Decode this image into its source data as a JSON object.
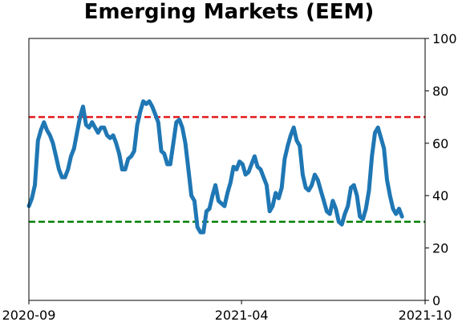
{
  "chart_data": {
    "type": "line",
    "title": "Emerging Markets (EEM)",
    "xlabel": "",
    "ylabel": "",
    "ylim": [
      0,
      100
    ],
    "xlim": [
      "2020-09",
      "2021-10"
    ],
    "x_tick_labels": [
      "2020-09",
      "2021-04",
      "2021-10"
    ],
    "y_tick_labels": [
      "0",
      "20",
      "40",
      "60",
      "80",
      "100"
    ],
    "y_axis_side": "right",
    "grid": false,
    "legend": "none",
    "colors": {
      "series": "#1f77b4",
      "upper_line": "#e31a1c",
      "lower_line": "#008000"
    },
    "reference_lines": [
      {
        "y": 70,
        "style": "dashed",
        "color": "#e31a1c"
      },
      {
        "y": 30,
        "style": "dashed",
        "color": "#008000"
      }
    ],
    "series": [
      {
        "points": [
          [
            "2020-09-01",
            36
          ],
          [
            "2020-09-04",
            39
          ],
          [
            "2020-09-07",
            44
          ],
          [
            "2020-09-10",
            61
          ],
          [
            "2020-09-13",
            65
          ],
          [
            "2020-09-16",
            68
          ],
          [
            "2020-09-19",
            65
          ],
          [
            "2020-09-22",
            63
          ],
          [
            "2020-09-25",
            60
          ],
          [
            "2020-09-28",
            55
          ],
          [
            "2020-10-01",
            50
          ],
          [
            "2020-10-04",
            47
          ],
          [
            "2020-10-07",
            47
          ],
          [
            "2020-10-10",
            50
          ],
          [
            "2020-10-13",
            55
          ],
          [
            "2020-10-16",
            58
          ],
          [
            "2020-10-19",
            64
          ],
          [
            "2020-10-22",
            70
          ],
          [
            "2020-10-25",
            74
          ],
          [
            "2020-10-28",
            67
          ],
          [
            "2020-10-31",
            66
          ],
          [
            "2020-11-03",
            68
          ],
          [
            "2020-11-06",
            66
          ],
          [
            "2020-11-09",
            64
          ],
          [
            "2020-11-12",
            66
          ],
          [
            "2020-11-15",
            66
          ],
          [
            "2020-11-18",
            63
          ],
          [
            "2020-11-21",
            62
          ],
          [
            "2020-11-24",
            63
          ],
          [
            "2020-11-27",
            60
          ],
          [
            "2020-11-30",
            56
          ],
          [
            "2020-12-03",
            50
          ],
          [
            "2020-12-06",
            50
          ],
          [
            "2020-12-09",
            54
          ],
          [
            "2020-12-12",
            55
          ],
          [
            "2020-12-15",
            57
          ],
          [
            "2020-12-18",
            67
          ],
          [
            "2020-12-21",
            72
          ],
          [
            "2020-12-24",
            76
          ],
          [
            "2020-12-27",
            75
          ],
          [
            "2020-12-30",
            76
          ],
          [
            "2021-01-02",
            74
          ],
          [
            "2021-01-05",
            71
          ],
          [
            "2021-01-08",
            68
          ],
          [
            "2021-01-11",
            57
          ],
          [
            "2021-01-14",
            56
          ],
          [
            "2021-01-17",
            52
          ],
          [
            "2021-01-20",
            52
          ],
          [
            "2021-01-23",
            60
          ],
          [
            "2021-01-26",
            68
          ],
          [
            "2021-01-29",
            69
          ],
          [
            "2021-02-01",
            66
          ],
          [
            "2021-02-04",
            60
          ],
          [
            "2021-02-07",
            50
          ],
          [
            "2021-02-10",
            40
          ],
          [
            "2021-02-13",
            38
          ],
          [
            "2021-02-16",
            28
          ],
          [
            "2021-02-19",
            26
          ],
          [
            "2021-02-22",
            26
          ],
          [
            "2021-02-25",
            34
          ],
          [
            "2021-02-28",
            35
          ],
          [
            "2021-03-03",
            40
          ],
          [
            "2021-03-06",
            44
          ],
          [
            "2021-03-09",
            38
          ],
          [
            "2021-03-12",
            37
          ],
          [
            "2021-03-15",
            36
          ],
          [
            "2021-03-18",
            41
          ],
          [
            "2021-03-21",
            45
          ],
          [
            "2021-03-24",
            51
          ],
          [
            "2021-03-27",
            50
          ],
          [
            "2021-03-30",
            53
          ],
          [
            "2021-04-02",
            52
          ],
          [
            "2021-04-05",
            48
          ],
          [
            "2021-04-08",
            49
          ],
          [
            "2021-04-11",
            52
          ],
          [
            "2021-04-14",
            55
          ],
          [
            "2021-04-17",
            51
          ],
          [
            "2021-04-20",
            50
          ],
          [
            "2021-04-23",
            47
          ],
          [
            "2021-04-26",
            44
          ],
          [
            "2021-04-29",
            34
          ],
          [
            "2021-05-02",
            36
          ],
          [
            "2021-05-05",
            41
          ],
          [
            "2021-05-08",
            39
          ],
          [
            "2021-05-11",
            43
          ],
          [
            "2021-05-14",
            54
          ],
          [
            "2021-05-17",
            59
          ],
          [
            "2021-05-20",
            63
          ],
          [
            "2021-05-23",
            66
          ],
          [
            "2021-05-26",
            61
          ],
          [
            "2021-05-29",
            59
          ],
          [
            "2021-06-01",
            48
          ],
          [
            "2021-06-04",
            43
          ],
          [
            "2021-06-07",
            42
          ],
          [
            "2021-06-10",
            44
          ],
          [
            "2021-06-13",
            48
          ],
          [
            "2021-06-16",
            46
          ],
          [
            "2021-06-19",
            42
          ],
          [
            "2021-06-22",
            38
          ],
          [
            "2021-06-25",
            34
          ],
          [
            "2021-06-28",
            33
          ],
          [
            "2021-07-01",
            38
          ],
          [
            "2021-07-04",
            35
          ],
          [
            "2021-07-07",
            30
          ],
          [
            "2021-07-10",
            29
          ],
          [
            "2021-07-13",
            33
          ],
          [
            "2021-07-16",
            36
          ],
          [
            "2021-07-19",
            43
          ],
          [
            "2021-07-22",
            44
          ],
          [
            "2021-07-25",
            40
          ],
          [
            "2021-07-28",
            32
          ],
          [
            "2021-07-31",
            31
          ],
          [
            "2021-08-03",
            35
          ],
          [
            "2021-08-06",
            42
          ],
          [
            "2021-08-09",
            55
          ],
          [
            "2021-08-12",
            64
          ],
          [
            "2021-08-15",
            66
          ],
          [
            "2021-08-18",
            62
          ],
          [
            "2021-08-21",
            58
          ],
          [
            "2021-08-24",
            46
          ],
          [
            "2021-08-27",
            40
          ],
          [
            "2021-08-30",
            35
          ],
          [
            "2021-09-02",
            33
          ],
          [
            "2021-09-05",
            35
          ],
          [
            "2021-09-08",
            32
          ]
        ]
      }
    ]
  }
}
